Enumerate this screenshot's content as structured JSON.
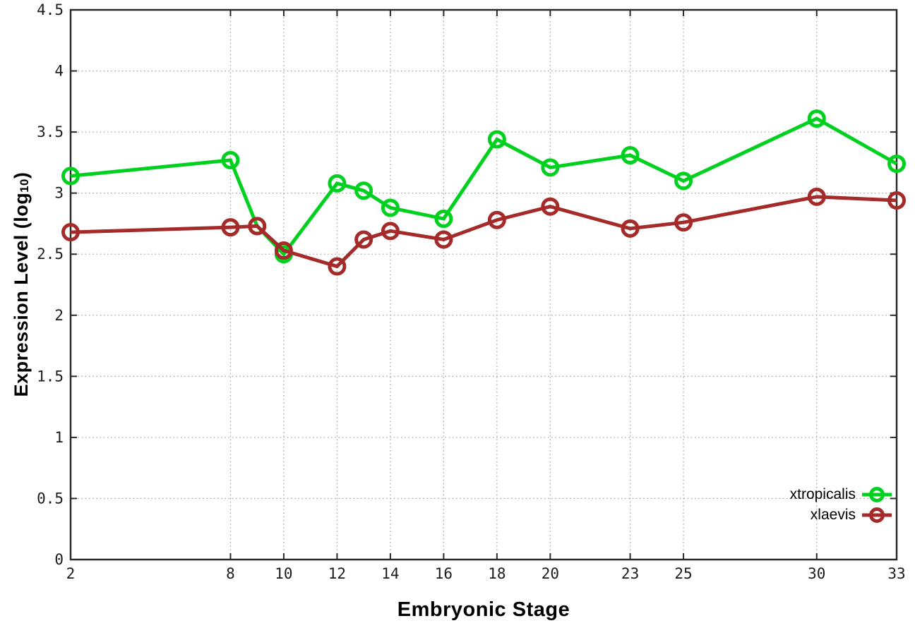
{
  "figure": {
    "background": "#ffffff",
    "xlabel": "Embryonic Stage",
    "ylabel_prefix": "Expression Level (log",
    "ylabel_subscript": "10",
    "ylabel_suffix": ")"
  },
  "chart_data": {
    "type": "line",
    "title": "",
    "xlabel": "Embryonic Stage",
    "ylabel": "Expression Level (log10)",
    "x": [
      2,
      8,
      9,
      10,
      12,
      13,
      14,
      16,
      18,
      20,
      23,
      25,
      30,
      33
    ],
    "series": [
      {
        "name": "xtropicalis",
        "color": "#00d01e",
        "values": [
          3.14,
          3.27,
          2.73,
          2.5,
          3.08,
          3.02,
          2.88,
          2.79,
          3.44,
          3.21,
          3.31,
          3.1,
          3.61,
          3.24
        ]
      },
      {
        "name": "xlaevis",
        "color": "#a52a2a",
        "values": [
          2.68,
          2.72,
          2.73,
          2.53,
          2.4,
          2.62,
          2.69,
          2.62,
          2.78,
          2.89,
          2.71,
          2.76,
          2.97,
          2.94
        ]
      }
    ],
    "xlim": [
      2,
      33
    ],
    "ylim": [
      0,
      4.5
    ],
    "xticks": [
      2,
      8,
      10,
      12,
      14,
      16,
      18,
      20,
      23,
      25,
      30,
      33
    ],
    "yticks": [
      0,
      0.5,
      1,
      1.5,
      2,
      2.5,
      3,
      3.5,
      4,
      4.5
    ],
    "grid": true,
    "grid_color": "#a8a8a8",
    "axis_color": "#2a2a2a",
    "tick_label_color": "#1c1c1c",
    "marker": "open-circle",
    "legend_position": "bottom-right"
  }
}
